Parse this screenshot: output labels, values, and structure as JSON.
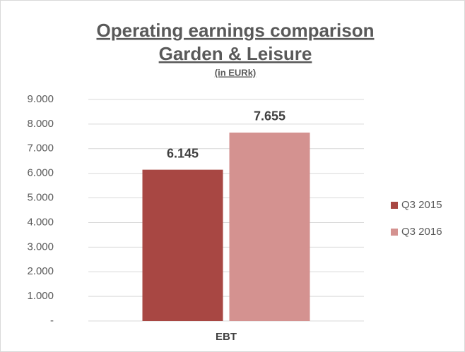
{
  "chart_data": {
    "type": "bar",
    "title": [
      "Operating earnings comparison",
      "Garden & Leisure"
    ],
    "subtitle": "(in EURk)",
    "categories": [
      "EBT"
    ],
    "series": [
      {
        "name": "Q3 2015",
        "color": "#a84743",
        "values": [
          6145
        ],
        "value_labels": [
          "6.145"
        ]
      },
      {
        "name": "Q3 2016",
        "color": "#d49290",
        "values": [
          7655
        ],
        "value_labels": [
          "7.655"
        ]
      }
    ],
    "ylim": [
      0,
      9000
    ],
    "yticks": [
      {
        "value": 0,
        "label": "-"
      },
      {
        "value": 1000,
        "label": "1.000"
      },
      {
        "value": 2000,
        "label": "2.000"
      },
      {
        "value": 3000,
        "label": "3.000"
      },
      {
        "value": 4000,
        "label": "4.000"
      },
      {
        "value": 5000,
        "label": "5.000"
      },
      {
        "value": 6000,
        "label": "6.000"
      },
      {
        "value": 7000,
        "label": "7.000"
      },
      {
        "value": 8000,
        "label": "8.000"
      },
      {
        "value": 9000,
        "label": "9.000"
      }
    ],
    "grid": true,
    "legend": "right"
  }
}
